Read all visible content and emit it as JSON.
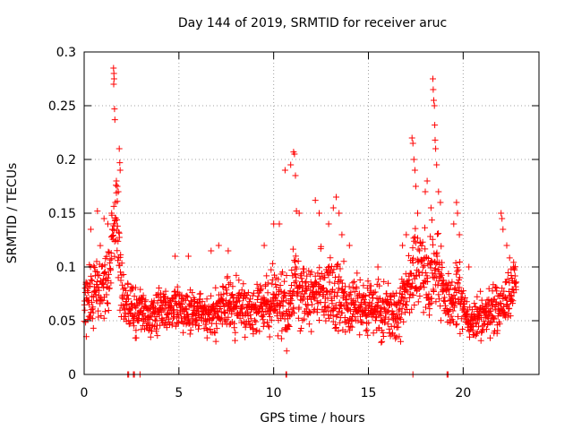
{
  "chart_data": {
    "type": "scatter",
    "title": "Day 144 of 2019, SRMTID for receiver aruc",
    "xlabel": "GPS time / hours",
    "ylabel": "SRMTID / TECUs",
    "xlim": [
      0,
      24
    ],
    "ylim": [
      0,
      0.3
    ],
    "xticks": [
      0,
      5,
      10,
      15,
      20
    ],
    "xtick_labels": [
      "0",
      "5",
      "10",
      "15",
      "20"
    ],
    "yticks": [
      0,
      0.05,
      0.1,
      0.15,
      0.2,
      0.25,
      0.3
    ],
    "ytick_labels": [
      "0",
      "0.05",
      "0.1",
      "0.15",
      "0.2",
      "0.25",
      "0.3"
    ],
    "grid": true,
    "marker": "+",
    "color": "#ff0000",
    "series": [
      {
        "name": "SRMTID",
        "envelope": {
          "x": [
            0.0,
            0.2,
            0.4,
            0.6,
            0.8,
            1.0,
            1.2,
            1.4,
            1.5,
            1.6,
            1.7,
            1.8,
            1.9,
            2.0,
            2.2,
            2.5,
            3.0,
            3.5,
            4.0,
            4.5,
            5.0,
            5.5,
            6.0,
            6.5,
            7.0,
            7.5,
            8.0,
            8.5,
            9.0,
            9.5,
            10.0,
            10.3,
            10.6,
            10.8,
            11.0,
            11.2,
            11.5,
            12.0,
            12.5,
            13.0,
            13.3,
            13.6,
            14.0,
            14.5,
            15.0,
            15.5,
            16.0,
            16.5,
            17.0,
            17.3,
            17.5,
            17.7,
            18.0,
            18.2,
            18.4,
            18.6,
            18.8,
            19.0,
            19.2,
            19.5,
            19.8,
            20.0,
            20.3,
            20.6,
            21.0,
            21.5,
            22.0,
            22.3,
            22.6,
            22.8
          ],
          "center": [
            0.06,
            0.08,
            0.07,
            0.08,
            0.08,
            0.09,
            0.09,
            0.1,
            0.12,
            0.14,
            0.15,
            0.12,
            0.09,
            0.08,
            0.06,
            0.06,
            0.06,
            0.05,
            0.06,
            0.06,
            0.06,
            0.06,
            0.06,
            0.055,
            0.06,
            0.065,
            0.065,
            0.06,
            0.06,
            0.065,
            0.07,
            0.07,
            0.06,
            0.05,
            0.08,
            0.085,
            0.07,
            0.07,
            0.08,
            0.08,
            0.075,
            0.07,
            0.07,
            0.065,
            0.06,
            0.06,
            0.06,
            0.05,
            0.08,
            0.09,
            0.1,
            0.1,
            0.09,
            0.09,
            0.1,
            0.1,
            0.09,
            0.07,
            0.07,
            0.07,
            0.08,
            0.06,
            0.05,
            0.05,
            0.055,
            0.06,
            0.06,
            0.07,
            0.08,
            0.08
          ],
          "spread": [
            0.035,
            0.045,
            0.045,
            0.04,
            0.045,
            0.045,
            0.045,
            0.05,
            0.06,
            0.07,
            0.07,
            0.06,
            0.05,
            0.04,
            0.035,
            0.03,
            0.03,
            0.03,
            0.03,
            0.03,
            0.03,
            0.03,
            0.03,
            0.03,
            0.035,
            0.035,
            0.035,
            0.035,
            0.035,
            0.04,
            0.045,
            0.045,
            0.04,
            0.04,
            0.05,
            0.05,
            0.045,
            0.04,
            0.045,
            0.05,
            0.05,
            0.045,
            0.045,
            0.04,
            0.035,
            0.035,
            0.035,
            0.035,
            0.045,
            0.05,
            0.06,
            0.06,
            0.05,
            0.055,
            0.06,
            0.055,
            0.05,
            0.04,
            0.04,
            0.045,
            0.05,
            0.03,
            0.025,
            0.03,
            0.03,
            0.035,
            0.035,
            0.04,
            0.035,
            0.03
          ]
        },
        "peaks": [
          {
            "x": 1.55,
            "y": 0.285
          },
          {
            "x": 1.57,
            "y": 0.28
          },
          {
            "x": 1.58,
            "y": 0.275
          },
          {
            "x": 1.56,
            "y": 0.27
          },
          {
            "x": 1.6,
            "y": 0.247
          },
          {
            "x": 1.62,
            "y": 0.237
          },
          {
            "x": 1.85,
            "y": 0.21
          },
          {
            "x": 1.88,
            "y": 0.197
          },
          {
            "x": 1.9,
            "y": 0.19
          },
          {
            "x": 1.7,
            "y": 0.18
          },
          {
            "x": 1.75,
            "y": 0.175
          },
          {
            "x": 1.8,
            "y": 0.17
          },
          {
            "x": 0.35,
            "y": 0.135
          },
          {
            "x": 0.7,
            "y": 0.152
          },
          {
            "x": 1.05,
            "y": 0.145
          },
          {
            "x": 1.25,
            "y": 0.14
          },
          {
            "x": 1.45,
            "y": 0.15
          },
          {
            "x": 1.65,
            "y": 0.16
          },
          {
            "x": 4.8,
            "y": 0.11
          },
          {
            "x": 5.5,
            "y": 0.11
          },
          {
            "x": 6.7,
            "y": 0.115
          },
          {
            "x": 7.1,
            "y": 0.12
          },
          {
            "x": 7.6,
            "y": 0.115
          },
          {
            "x": 9.5,
            "y": 0.12
          },
          {
            "x": 10.0,
            "y": 0.14
          },
          {
            "x": 10.3,
            "y": 0.14
          },
          {
            "x": 10.6,
            "y": 0.19
          },
          {
            "x": 10.9,
            "y": 0.195
          },
          {
            "x": 11.05,
            "y": 0.207
          },
          {
            "x": 11.1,
            "y": 0.205
          },
          {
            "x": 11.15,
            "y": 0.185
          },
          {
            "x": 11.2,
            "y": 0.152
          },
          {
            "x": 11.35,
            "y": 0.15
          },
          {
            "x": 12.2,
            "y": 0.162
          },
          {
            "x": 12.4,
            "y": 0.15
          },
          {
            "x": 12.9,
            "y": 0.14
          },
          {
            "x": 13.15,
            "y": 0.155
          },
          {
            "x": 13.3,
            "y": 0.165
          },
          {
            "x": 13.45,
            "y": 0.15
          },
          {
            "x": 13.6,
            "y": 0.13
          },
          {
            "x": 14.0,
            "y": 0.12
          },
          {
            "x": 15.5,
            "y": 0.1
          },
          {
            "x": 16.8,
            "y": 0.12
          },
          {
            "x": 17.0,
            "y": 0.13
          },
          {
            "x": 17.3,
            "y": 0.22
          },
          {
            "x": 17.35,
            "y": 0.215
          },
          {
            "x": 17.4,
            "y": 0.2
          },
          {
            "x": 17.45,
            "y": 0.19
          },
          {
            "x": 17.5,
            "y": 0.175
          },
          {
            "x": 17.6,
            "y": 0.15
          },
          {
            "x": 18.0,
            "y": 0.17
          },
          {
            "x": 18.1,
            "y": 0.18
          },
          {
            "x": 18.3,
            "y": 0.155
          },
          {
            "x": 18.4,
            "y": 0.275
          },
          {
            "x": 18.42,
            "y": 0.265
          },
          {
            "x": 18.45,
            "y": 0.255
          },
          {
            "x": 18.48,
            "y": 0.25
          },
          {
            "x": 18.5,
            "y": 0.232
          },
          {
            "x": 18.52,
            "y": 0.218
          },
          {
            "x": 18.55,
            "y": 0.21
          },
          {
            "x": 18.6,
            "y": 0.195
          },
          {
            "x": 18.7,
            "y": 0.17
          },
          {
            "x": 18.8,
            "y": 0.16
          },
          {
            "x": 19.5,
            "y": 0.14
          },
          {
            "x": 19.65,
            "y": 0.16
          },
          {
            "x": 19.7,
            "y": 0.15
          },
          {
            "x": 19.8,
            "y": 0.13
          },
          {
            "x": 20.3,
            "y": 0.1
          },
          {
            "x": 22.0,
            "y": 0.15
          },
          {
            "x": 22.05,
            "y": 0.145
          },
          {
            "x": 22.1,
            "y": 0.135
          },
          {
            "x": 22.3,
            "y": 0.12
          }
        ],
        "zeros": [
          2.3,
          2.35,
          2.6,
          2.65,
          2.95,
          10.65,
          10.68,
          17.35,
          19.15,
          19.2
        ]
      }
    ]
  }
}
